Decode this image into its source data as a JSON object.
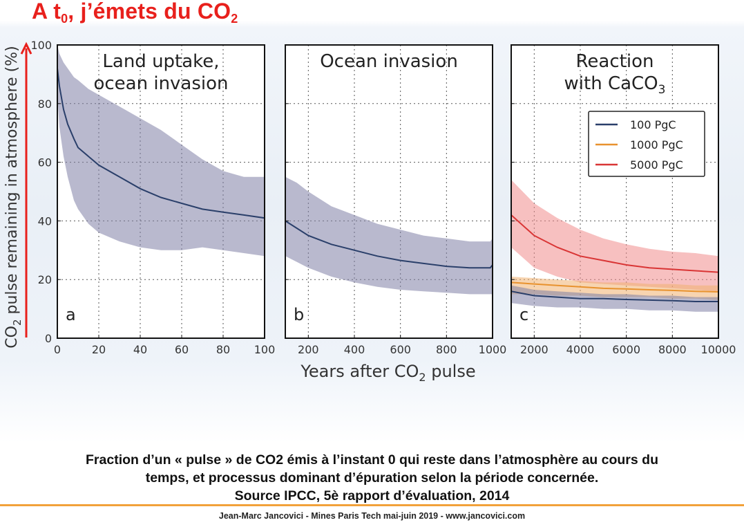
{
  "slide": {
    "title_main": "A t",
    "title_sub": "0",
    "title_rest": ", j’émets du CO",
    "title_sub2": "2",
    "caption_line1": "Fraction d’un « pulse » de CO2 émis à l’instant 0 qui reste dans l’atmosphère au cours du",
    "caption_line2": "temps, et processus dominant d’épuration selon la période concernée.",
    "caption_line3": "Source IPCC, 5è rapport d’évaluation, 2014",
    "footer": "Jean-Marc Jancovici - Mines Paris Tech mai-juin 2019 - www.jancovici.com"
  },
  "chart_data": {
    "type": "line",
    "ylabel": "CO2 pulse remaining in atmosphere (%)",
    "xlabel": "Years after CO2 pulse",
    "ylim": [
      0,
      100
    ],
    "yticks": [
      0,
      20,
      40,
      60,
      80,
      100
    ],
    "grid": true,
    "legend_placement": "upper-right of panel c",
    "colors": {
      "series_100": "#2a3f6a",
      "series_1000": "#e8922e",
      "series_5000": "#d93535",
      "band_100": "#7f7fa6",
      "band_1000": "#f0b070",
      "band_5000": "#f08c8c",
      "axis_arrow": "#e8201c"
    },
    "legend": [
      {
        "label": "100 PgC",
        "key": "series_100"
      },
      {
        "label": "1000 PgC",
        "key": "series_1000"
      },
      {
        "label": "5000 PgC",
        "key": "series_5000"
      }
    ],
    "panels": [
      {
        "id": "a",
        "title": [
          "Land uptake,",
          "ocean invasion"
        ],
        "xlim": [
          0,
          100
        ],
        "xticks": [
          0,
          20,
          40,
          60,
          80,
          100
        ],
        "series": [
          {
            "key": "series_100",
            "x": [
              0,
              1,
              3,
              5,
              8,
              10,
              15,
              20,
              30,
              40,
              50,
              60,
              70,
              80,
              90,
              100
            ],
            "y": [
              92,
              86,
              78,
              73,
              68,
              65,
              62,
              59,
              55,
              51,
              48,
              46,
              44,
              43,
              42,
              41
            ],
            "lower": [
              83,
              72,
              62,
              55,
              47,
              44,
              39,
              36,
              33,
              31,
              30,
              30,
              31,
              30,
              29,
              28
            ],
            "upper": [
              100,
              97,
              94,
              92,
              89,
              88,
              85,
              83,
              79,
              75,
              71,
              66,
              61,
              57,
              55,
              55
            ]
          }
        ]
      },
      {
        "id": "b",
        "title": [
          "Ocean invasion"
        ],
        "xlim": [
          100,
          1000
        ],
        "xticks": [
          200,
          400,
          600,
          800,
          1000
        ],
        "series": [
          {
            "key": "series_100",
            "x": [
              100,
              150,
              200,
              300,
              400,
              500,
              600,
              700,
              800,
              900,
              990,
              1000
            ],
            "y": [
              40,
              37.5,
              35,
              32,
              30,
              28,
              26.5,
              25.5,
              24.5,
              24,
              24,
              25
            ],
            "lower": [
              28,
              26,
              24,
              21,
              19,
              17.5,
              16.5,
              16,
              15.5,
              15,
              15,
              15
            ],
            "upper": [
              55,
              53,
              50,
              45,
              42,
              39,
              37,
              35,
              34,
              33,
              33,
              34
            ]
          }
        ]
      },
      {
        "id": "c",
        "title": [
          "Reaction",
          "with CaCO"
        ],
        "title_sub": "3",
        "xlim": [
          1000,
          10000
        ],
        "xticks": [
          2000,
          4000,
          6000,
          8000,
          10000
        ],
        "series": [
          {
            "key": "series_5000",
            "x": [
              1000,
              2000,
              3000,
              4000,
              5000,
              6000,
              7000,
              8000,
              9000,
              10000
            ],
            "y": [
              42,
              35,
              31,
              28,
              26.5,
              25,
              24,
              23.5,
              23,
              22.5
            ],
            "lower": [
              31,
              24,
              21,
              19,
              18.5,
              18,
              17.5,
              17,
              16.5,
              16
            ],
            "upper": [
              54,
              46,
              41,
              37,
              34,
              32,
              30.5,
              29.5,
              29,
              28
            ]
          },
          {
            "key": "series_1000",
            "x": [
              1000,
              2000,
              3000,
              4000,
              5000,
              6000,
              7000,
              8000,
              9000,
              10000
            ],
            "y": [
              19,
              18.5,
              18,
              17.5,
              17,
              16.8,
              16.5,
              16.3,
              16,
              15.8
            ],
            "lower": [
              15,
              15,
              14.5,
              14.5,
              14,
              14,
              14,
              13.5,
              13.5,
              13
            ],
            "upper": [
              21,
              20.5,
              20,
              19.5,
              19,
              19,
              18.5,
              18.5,
              18,
              18
            ]
          },
          {
            "key": "series_100",
            "x": [
              1000,
              2000,
              3000,
              4000,
              5000,
              6000,
              7000,
              8000,
              9000,
              10000
            ],
            "y": [
              16,
              14.5,
              14,
              13.5,
              13.5,
              13.2,
              13,
              12.8,
              12.5,
              12.5
            ],
            "lower": [
              12,
              11,
              10.5,
              10.5,
              10,
              10,
              9.5,
              9.5,
              9,
              9
            ],
            "upper": [
              18,
              16.5,
              16,
              15.5,
              15,
              15,
              14.5,
              14.5,
              14,
              14
            ]
          }
        ]
      }
    ]
  }
}
